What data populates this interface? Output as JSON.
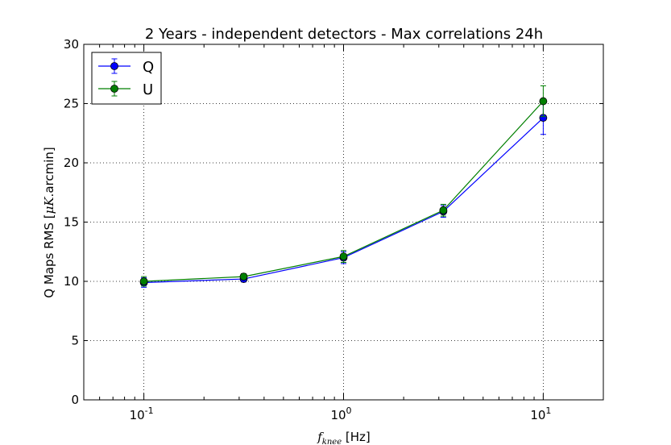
{
  "chart_data": {
    "type": "line",
    "title": "2 Years - independent detectors - Max correlations 24h",
    "xlabel_symbol": "f",
    "xlabel_subscript": "knee",
    "xlabel_unit": " [Hz]",
    "ylabel_text": "Q Maps RMS [",
    "ylabel_mu": "μK",
    "ylabel_tail": ".arcmin]",
    "xscale": "log",
    "xlim": [
      0.05,
      20
    ],
    "ylim": [
      0,
      30
    ],
    "grid": true,
    "legend_position": "upper-left",
    "x_ticks": [
      {
        "value": 0.1,
        "base": "10",
        "exp": "-1"
      },
      {
        "value": 1,
        "base": "10",
        "exp": "0"
      },
      {
        "value": 10,
        "base": "10",
        "exp": "1"
      }
    ],
    "y_ticks": [
      0,
      5,
      10,
      15,
      20,
      25,
      30
    ],
    "x": [
      0.1,
      0.316,
      1.0,
      3.16,
      10.0
    ],
    "series": [
      {
        "name": "Q",
        "color": "#0000ff",
        "values": [
          9.9,
          10.2,
          12.0,
          15.9,
          23.8
        ],
        "errors": [
          0.4,
          0.25,
          0.5,
          0.5,
          1.4
        ]
      },
      {
        "name": "U",
        "color": "#007f00",
        "values": [
          10.0,
          10.4,
          12.1,
          16.0,
          25.2
        ],
        "errors": [
          0.4,
          0.25,
          0.5,
          0.5,
          1.3
        ]
      }
    ]
  }
}
